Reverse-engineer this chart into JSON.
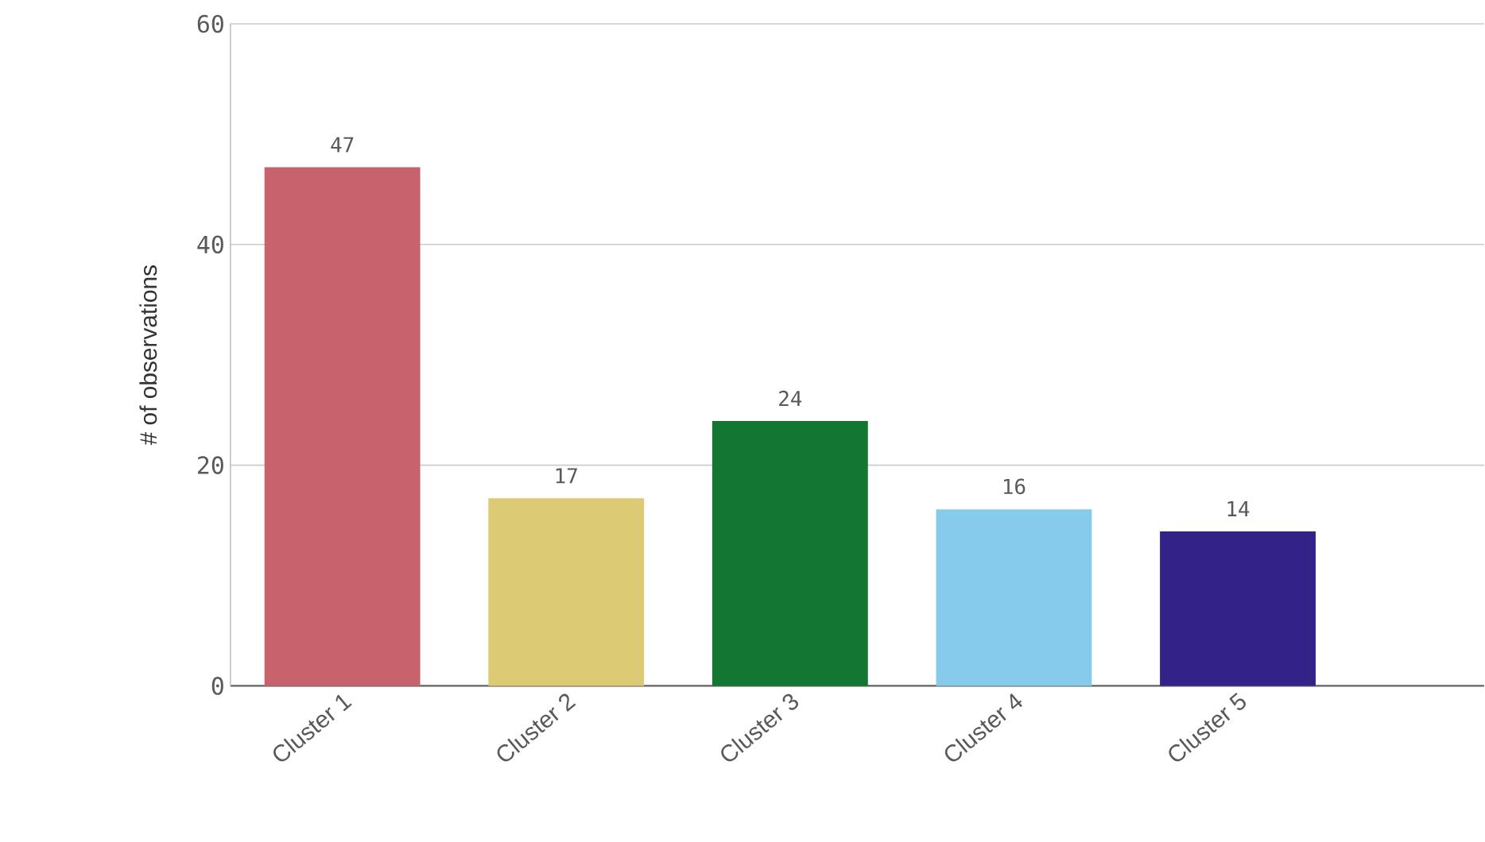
{
  "chart_data": {
    "type": "bar",
    "ylabel": "# of observations",
    "categories": [
      "Cluster 1",
      "Cluster 2",
      "Cluster 3",
      "Cluster 4",
      "Cluster 5"
    ],
    "values": [
      47,
      17,
      24,
      16,
      14
    ],
    "colors": [
      "#c8636e",
      "#dccb74",
      "#137733",
      "#87cbec",
      "#332288"
    ],
    "ylim": [
      0,
      60
    ],
    "yticks": [
      0,
      20,
      40,
      60
    ],
    "grid": "y",
    "data_labels": true
  }
}
